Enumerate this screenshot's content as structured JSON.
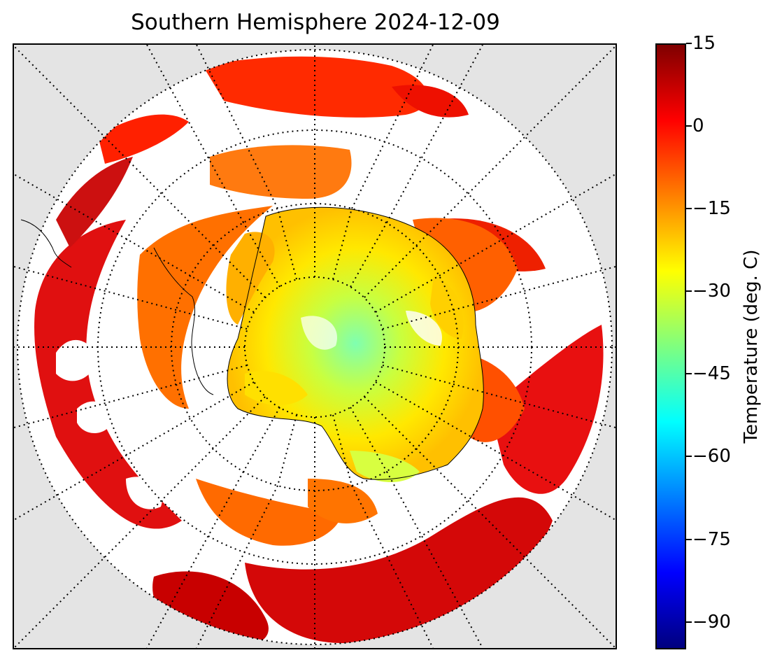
{
  "title": "Southern Hemisphere 2024-12-09",
  "colorbar": {
    "label": "Temperature (deg. C)",
    "ticks": [
      "15",
      "0",
      "−15",
      "−30",
      "−45",
      "−60",
      "−75",
      "−90"
    ],
    "tick_values": [
      15,
      0,
      -15,
      -30,
      -45,
      -60,
      -75,
      -90
    ],
    "range": [
      -95,
      15
    ],
    "colormap": "jet"
  },
  "colors": {
    "background": "#e4e4e4",
    "cold": "#00007f",
    "warm": "#7f0000"
  }
}
